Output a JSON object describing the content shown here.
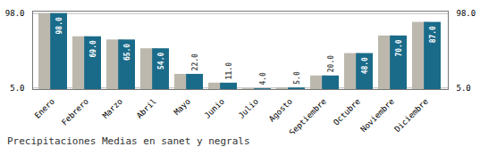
{
  "chart_data": {
    "type": "bar",
    "title": "Precipitaciones Medias en sanet y negrals",
    "categories": [
      "Enero",
      "Febrero",
      "Marzo",
      "Abril",
      "Mayo",
      "Junio",
      "Julio",
      "Agosto",
      "Septiembre",
      "Octubre",
      "Noviembre",
      "Diciembre"
    ],
    "series": [
      {
        "color": "#bdb8ad",
        "values": [
          98,
          69,
          65,
          54,
          22,
          11,
          4,
          5,
          20,
          48,
          70,
          87
        ]
      },
      {
        "color": "#1a6b8a",
        "values": [
          98,
          69,
          65,
          54,
          22,
          11,
          4,
          5,
          20,
          48,
          70,
          87
        ],
        "value_labels": [
          "98.0",
          "69.0",
          "65.0",
          "54.0",
          "22.0",
          "11.0",
          "4.0",
          "5.0",
          "20.0",
          "48.0",
          "70.0",
          "87.0"
        ]
      }
    ],
    "ylim": [
      3,
      101
    ],
    "yticks": [
      {
        "value": 5,
        "label": "5.0"
      },
      {
        "value": 98,
        "label": "98.0"
      }
    ],
    "grid": true,
    "data_labels": true
  }
}
